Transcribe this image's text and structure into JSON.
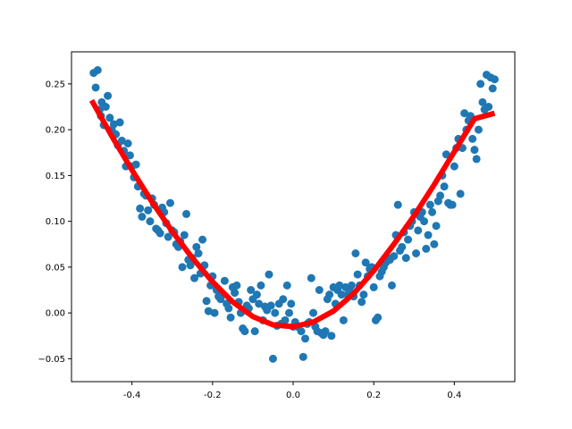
{
  "chart_data": {
    "type": "scatter",
    "title": "",
    "xlabel": "",
    "ylabel": "",
    "xlim": [
      -0.55,
      0.55
    ],
    "ylim": [
      -0.075,
      0.285
    ],
    "x_ticks": [
      "-0.4",
      "-0.2",
      "0.0",
      "0.2",
      "0.4"
    ],
    "x_tick_values": [
      -0.4,
      -0.2,
      0.0,
      0.2,
      0.4
    ],
    "y_ticks": [
      "−0.05",
      "0.00",
      "0.05",
      "0.10",
      "0.15",
      "0.20",
      "0.25"
    ],
    "y_tick_values": [
      -0.05,
      0.0,
      0.05,
      0.1,
      0.15,
      0.2,
      0.25
    ],
    "grid": false,
    "legend": "none",
    "series": [
      {
        "kind": "scatter",
        "color": "#1f77b4",
        "points": [
          [
            -0.495,
            0.262
          ],
          [
            -0.49,
            0.246
          ],
          [
            -0.485,
            0.265
          ],
          [
            -0.48,
            0.222
          ],
          [
            -0.477,
            0.215
          ],
          [
            -0.475,
            0.23
          ],
          [
            -0.47,
            0.205
          ],
          [
            -0.465,
            0.225
          ],
          [
            -0.46,
            0.237
          ],
          [
            -0.455,
            0.213
          ],
          [
            -0.45,
            0.2
          ],
          [
            -0.445,
            0.206
          ],
          [
            -0.44,
            0.195
          ],
          [
            -0.435,
            0.183
          ],
          [
            -0.43,
            0.208
          ],
          [
            -0.425,
            0.188
          ],
          [
            -0.42,
            0.177
          ],
          [
            -0.415,
            0.16
          ],
          [
            -0.41,
            0.185
          ],
          [
            -0.405,
            0.172
          ],
          [
            -0.4,
            0.16
          ],
          [
            -0.395,
            0.148
          ],
          [
            -0.39,
            0.162
          ],
          [
            -0.385,
            0.138
          ],
          [
            -0.38,
            0.114
          ],
          [
            -0.375,
            0.105
          ],
          [
            -0.37,
            0.13
          ],
          [
            -0.365,
            0.128
          ],
          [
            -0.36,
            0.112
          ],
          [
            -0.355,
            0.1
          ],
          [
            -0.35,
            0.125
          ],
          [
            -0.345,
            0.118
          ],
          [
            -0.34,
            0.092
          ],
          [
            -0.335,
            0.09
          ],
          [
            -0.33,
            0.087
          ],
          [
            -0.325,
            0.115
          ],
          [
            -0.32,
            0.11
          ],
          [
            -0.315,
            0.098
          ],
          [
            -0.31,
            0.083
          ],
          [
            -0.305,
            0.12
          ],
          [
            -0.3,
            0.09
          ],
          [
            -0.295,
            0.088
          ],
          [
            -0.29,
            0.075
          ],
          [
            -0.285,
            0.072
          ],
          [
            -0.28,
            0.078
          ],
          [
            -0.275,
            0.05
          ],
          [
            -0.27,
            0.085
          ],
          [
            -0.265,
            0.108
          ],
          [
            -0.26,
            0.058
          ],
          [
            -0.255,
            0.052
          ],
          [
            -0.25,
            0.06
          ],
          [
            -0.245,
            0.038
          ],
          [
            -0.24,
            0.072
          ],
          [
            -0.235,
            0.065
          ],
          [
            -0.23,
            0.043
          ],
          [
            -0.225,
            0.08
          ],
          [
            -0.22,
            0.052
          ],
          [
            -0.215,
            0.013
          ],
          [
            -0.21,
            0.002
          ],
          [
            -0.205,
            0.03
          ],
          [
            -0.2,
            0.04
          ],
          [
            -0.195,
            0.0
          ],
          [
            -0.19,
            0.025
          ],
          [
            -0.185,
            0.018
          ],
          [
            -0.18,
            0.015
          ],
          [
            -0.175,
            0.02
          ],
          [
            -0.17,
            0.035
          ],
          [
            -0.165,
            0.01
          ],
          [
            -0.16,
            0.005
          ],
          [
            -0.155,
            -0.005
          ],
          [
            -0.15,
            0.028
          ],
          [
            -0.145,
            0.022
          ],
          [
            -0.14,
            0.03
          ],
          [
            -0.135,
            0.012
          ],
          [
            -0.13,
            0.0
          ],
          [
            -0.125,
            -0.017
          ],
          [
            -0.12,
            -0.02
          ],
          [
            -0.115,
            0.008
          ],
          [
            -0.11,
            0.005
          ],
          [
            -0.105,
            0.025
          ],
          [
            -0.1,
            0.015
          ],
          [
            -0.095,
            -0.02
          ],
          [
            -0.09,
            0.02
          ],
          [
            -0.085,
            0.01
          ],
          [
            -0.08,
            0.03
          ],
          [
            -0.075,
            -0.008
          ],
          [
            -0.07,
            0.007
          ],
          [
            -0.065,
            0.003
          ],
          [
            -0.06,
            0.042
          ],
          [
            -0.055,
            0.008
          ],
          [
            -0.05,
            -0.05
          ],
          [
            -0.045,
            0.0
          ],
          [
            -0.04,
            -0.014
          ],
          [
            -0.035,
            0.01
          ],
          [
            -0.03,
            -0.012
          ],
          [
            -0.025,
            0.015
          ],
          [
            -0.02,
            -0.008
          ],
          [
            -0.015,
            0.03
          ],
          [
            -0.01,
            0.0
          ],
          [
            -0.005,
            0.01
          ],
          [
            0.0,
            -0.015
          ],
          [
            0.005,
            -0.01
          ],
          [
            0.01,
            -0.015
          ],
          [
            0.02,
            -0.02
          ],
          [
            0.025,
            -0.048
          ],
          [
            0.03,
            -0.028
          ],
          [
            0.035,
            -0.012
          ],
          [
            0.04,
            -0.01
          ],
          [
            0.045,
            0.038
          ],
          [
            0.05,
            0.0
          ],
          [
            0.055,
            -0.015
          ],
          [
            0.06,
            -0.02
          ],
          [
            0.065,
            0.025
          ],
          [
            0.07,
            -0.022
          ],
          [
            0.075,
            -0.024
          ],
          [
            0.08,
            -0.02
          ],
          [
            0.085,
            0.015
          ],
          [
            0.09,
            0.02
          ],
          [
            0.095,
            -0.025
          ],
          [
            0.1,
            0.028
          ],
          [
            0.105,
            0.01
          ],
          [
            0.11,
            0.025
          ],
          [
            0.115,
            0.03
          ],
          [
            0.12,
            0.02
          ],
          [
            0.125,
            -0.008
          ],
          [
            0.13,
            0.028
          ],
          [
            0.135,
            0.02
          ],
          [
            0.14,
            0.025
          ],
          [
            0.145,
            0.03
          ],
          [
            0.15,
            0.018
          ],
          [
            0.155,
            0.065
          ],
          [
            0.16,
            0.042
          ],
          [
            0.165,
            0.03
          ],
          [
            0.17,
            0.012
          ],
          [
            0.175,
            0.02
          ],
          [
            0.18,
            0.055
          ],
          [
            0.185,
            0.04
          ],
          [
            0.19,
            0.048
          ],
          [
            0.195,
            0.05
          ],
          [
            0.2,
            0.028
          ],
          [
            0.205,
            -0.008
          ],
          [
            0.21,
            -0.005
          ],
          [
            0.215,
            0.04
          ],
          [
            0.22,
            0.045
          ],
          [
            0.225,
            0.05
          ],
          [
            0.23,
            0.055
          ],
          [
            0.235,
            0.06
          ],
          [
            0.24,
            0.058
          ],
          [
            0.245,
            0.03
          ],
          [
            0.25,
            0.062
          ],
          [
            0.255,
            0.085
          ],
          [
            0.26,
            0.118
          ],
          [
            0.265,
            0.068
          ],
          [
            0.27,
            0.072
          ],
          [
            0.275,
            0.088
          ],
          [
            0.28,
            0.06
          ],
          [
            0.285,
            0.08
          ],
          [
            0.29,
            0.095
          ],
          [
            0.295,
            0.1
          ],
          [
            0.3,
            0.11
          ],
          [
            0.305,
            0.065
          ],
          [
            0.31,
            0.09
          ],
          [
            0.315,
            0.105
          ],
          [
            0.32,
            0.11
          ],
          [
            0.325,
            0.1
          ],
          [
            0.33,
            0.07
          ],
          [
            0.335,
            0.085
          ],
          [
            0.34,
            0.118
          ],
          [
            0.345,
            0.11
          ],
          [
            0.35,
            0.075
          ],
          [
            0.355,
            0.095
          ],
          [
            0.36,
            0.122
          ],
          [
            0.365,
            0.128
          ],
          [
            0.37,
            0.15
          ],
          [
            0.375,
            0.138
          ],
          [
            0.38,
            0.173
          ],
          [
            0.385,
            0.12
          ],
          [
            0.39,
            0.118
          ],
          [
            0.395,
            0.118
          ],
          [
            0.4,
            0.16
          ],
          [
            0.405,
            0.18
          ],
          [
            0.41,
            0.19
          ],
          [
            0.415,
            0.13
          ],
          [
            0.42,
            0.18
          ],
          [
            0.425,
            0.218
          ],
          [
            0.43,
            0.2
          ],
          [
            0.435,
            0.21
          ],
          [
            0.44,
            0.215
          ],
          [
            0.445,
            0.19
          ],
          [
            0.45,
            0.178
          ],
          [
            0.455,
            0.168
          ],
          [
            0.46,
            0.2
          ],
          [
            0.465,
            0.25
          ],
          [
            0.47,
            0.23
          ],
          [
            0.475,
            0.222
          ],
          [
            0.48,
            0.26
          ],
          [
            0.485,
            0.225
          ],
          [
            0.49,
            0.257
          ],
          [
            0.495,
            0.245
          ],
          [
            0.5,
            0.255
          ]
        ]
      },
      {
        "kind": "line",
        "color": "#ff0000",
        "points": [
          [
            -0.5,
            0.232
          ],
          [
            -0.45,
            0.193
          ],
          [
            -0.4,
            0.156
          ],
          [
            -0.35,
            0.121
          ],
          [
            -0.3,
            0.089
          ],
          [
            -0.25,
            0.06
          ],
          [
            -0.2,
            0.034
          ],
          [
            -0.15,
            0.012
          ],
          [
            -0.1,
            -0.004
          ],
          [
            -0.05,
            -0.013
          ],
          [
            0.0,
            -0.015
          ],
          [
            0.05,
            -0.01
          ],
          [
            0.1,
            0.002
          ],
          [
            0.15,
            0.021
          ],
          [
            0.2,
            0.046
          ],
          [
            0.25,
            0.075
          ],
          [
            0.3,
            0.106
          ],
          [
            0.35,
            0.14
          ],
          [
            0.4,
            0.176
          ],
          [
            0.45,
            0.212
          ],
          [
            0.5,
            0.218
          ]
        ]
      }
    ]
  }
}
